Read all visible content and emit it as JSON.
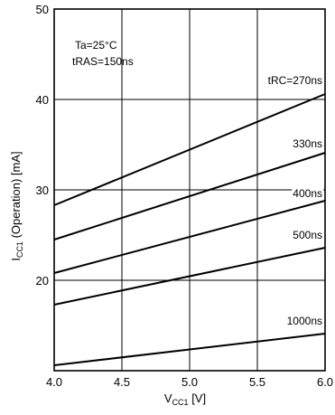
{
  "chart_data": {
    "type": "line",
    "xlabel_main": "V",
    "xlabel_sub": "CC1",
    "xlabel_unit": " [V]",
    "ylabel_main": "I",
    "ylabel_sub": "CC1",
    "ylabel_rest": " (Operation) [mA]",
    "xlim": [
      4.0,
      6.0
    ],
    "ylim": [
      10,
      50
    ],
    "x_ticks": [
      "4.0",
      "4.5",
      "5.0",
      "5.5",
      "6.0"
    ],
    "y_ticks": [
      "20",
      "30",
      "40",
      "50"
    ],
    "grid": true,
    "annotations": [
      "Ta=25°C",
      "tRAS=150ns"
    ],
    "series": [
      {
        "name": "tRC=270ns",
        "x": [
          4.0,
          6.0
        ],
        "y": [
          28.3,
          40.6
        ]
      },
      {
        "name": "330ns",
        "x": [
          4.0,
          6.0
        ],
        "y": [
          24.5,
          34.1
        ]
      },
      {
        "name": "400ns",
        "x": [
          4.0,
          6.0
        ],
        "y": [
          20.8,
          28.8
        ]
      },
      {
        "name": "500ns",
        "x": [
          4.0,
          6.0
        ],
        "y": [
          17.3,
          23.6
        ]
      },
      {
        "name": "1000ns",
        "x": [
          4.0,
          6.0
        ],
        "y": [
          10.6,
          14.1
        ]
      }
    ]
  }
}
